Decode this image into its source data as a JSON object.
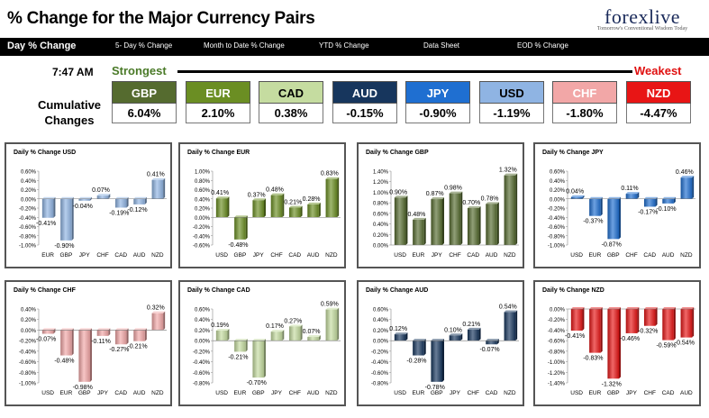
{
  "header": {
    "title": "% Change for the Major Currency Pairs",
    "logo_text": "forexlive",
    "logo_tagline": "Tomorrow's Conventional Wisdom Today"
  },
  "nav": {
    "items": [
      "Day % Change",
      "5- Day % Change",
      "Month to Date % Change",
      "YTD % Change",
      "Data Sheet",
      "EOD % Change"
    ]
  },
  "summary": {
    "time": "7:47 AM",
    "strongest_label": "Strongest",
    "weakest_label": "Weakest",
    "cumulative_label": "Cumulative Changes",
    "currencies": [
      {
        "code": "GBP",
        "value": "6.04%",
        "color": "#556b2f",
        "text_color": "#ffffff"
      },
      {
        "code": "EUR",
        "value": "2.10%",
        "color": "#6b8e23",
        "text_color": "#ffffff"
      },
      {
        "code": "CAD",
        "value": "0.38%",
        "color": "#c5dca0",
        "text_color": "#000000"
      },
      {
        "code": "AUD",
        "value": "-0.15%",
        "color": "#17365d",
        "text_color": "#ffffff"
      },
      {
        "code": "JPY",
        "value": "-0.90%",
        "color": "#1f6fd1",
        "text_color": "#ffffff"
      },
      {
        "code": "USD",
        "value": "-1.19%",
        "color": "#8fb4e3",
        "text_color": "#000000"
      },
      {
        "code": "CHF",
        "value": "-1.80%",
        "color": "#f2a7a7",
        "text_color": "#ffffff"
      },
      {
        "code": "NZD",
        "value": "-4.47%",
        "color": "#e81515",
        "text_color": "#ffffff"
      }
    ]
  },
  "chart_data": [
    {
      "type": "bar",
      "title": "Daily % Change USD",
      "base": "USD",
      "categories": [
        "EUR",
        "GBP",
        "JPY",
        "CHF",
        "CAD",
        "AUD",
        "NZD"
      ],
      "values": [
        -0.41,
        -0.9,
        -0.04,
        0.07,
        -0.19,
        -0.12,
        0.41
      ],
      "value_labels": [
        "-0.41%",
        "-0.90%",
        "-0.04%",
        "0.07%",
        "-0.19%",
        "-0.12%",
        "0.41%"
      ],
      "yticks": [
        "0.60%",
        "0.40%",
        "0.20%",
        "0.00%",
        "-0.20%",
        "-0.40%",
        "-0.60%",
        "-0.80%",
        "-1.00%"
      ],
      "ylim": [
        -1.0,
        0.6
      ],
      "color": "#8fb4e3"
    },
    {
      "type": "bar",
      "title": "Daily % Change EUR",
      "base": "EUR",
      "categories": [
        "USD",
        "GBP",
        "JPY",
        "CHF",
        "CAD",
        "AUD",
        "NZD"
      ],
      "values": [
        0.41,
        -0.48,
        0.37,
        0.48,
        0.21,
        0.28,
        0.83
      ],
      "value_labels": [
        "0.41%",
        "-0.48%",
        "0.37%",
        "0.48%",
        "0.21%",
        "0.28%",
        "0.83%"
      ],
      "yticks": [
        "1.00%",
        "0.80%",
        "0.60%",
        "0.40%",
        "0.20%",
        "0.00%",
        "-0.20%",
        "-0.40%",
        "-0.60%"
      ],
      "ylim": [
        -0.6,
        1.0
      ],
      "color": "#6b8e23"
    },
    {
      "type": "bar",
      "title": "Daily % Change GBP",
      "base": "GBP",
      "categories": [
        "USD",
        "EUR",
        "JPY",
        "CHF",
        "CAD",
        "AUD",
        "NZD"
      ],
      "values": [
        0.9,
        0.48,
        0.87,
        0.98,
        0.7,
        0.78,
        1.32
      ],
      "value_labels": [
        "0.90%",
        "0.48%",
        "0.87%",
        "0.98%",
        "0.70%",
        "0.78%",
        "1.32%"
      ],
      "yticks": [
        "1.40%",
        "1.20%",
        "1.00%",
        "0.80%",
        "0.60%",
        "0.40%",
        "0.20%",
        "0.00%"
      ],
      "ylim": [
        0.0,
        1.4
      ],
      "color": "#556b2f"
    },
    {
      "type": "bar",
      "title": "Daily % Change JPY",
      "base": "JPY",
      "categories": [
        "USD",
        "EUR",
        "GBP",
        "CHF",
        "CAD",
        "AUD",
        "NZD"
      ],
      "values": [
        0.04,
        -0.37,
        -0.87,
        0.11,
        -0.17,
        -0.1,
        0.46
      ],
      "value_labels": [
        "0.04%",
        "-0.37%",
        "-0.87%",
        "0.11%",
        "-0.17%",
        "-0.10%",
        "0.46%"
      ],
      "yticks": [
        "0.60%",
        "0.40%",
        "0.20%",
        "0.00%",
        "-0.20%",
        "-0.40%",
        "-0.60%",
        "-0.80%",
        "-1.00%"
      ],
      "ylim": [
        -1.0,
        0.6
      ],
      "color": "#1f6fd1"
    },
    {
      "type": "bar",
      "title": "Daily % Change CHF",
      "base": "CHF",
      "categories": [
        "USD",
        "EUR",
        "GBP",
        "JPY",
        "CAD",
        "AUD",
        "NZD"
      ],
      "values": [
        -0.07,
        -0.48,
        -0.98,
        -0.11,
        -0.27,
        -0.21,
        0.32
      ],
      "value_labels": [
        "-0.07%",
        "-0.48%",
        "-0.98%",
        "-0.11%",
        "-0.27%",
        "-0.21%",
        "0.32%"
      ],
      "yticks": [
        "0.40%",
        "0.20%",
        "0.00%",
        "-0.20%",
        "-0.40%",
        "-0.60%",
        "-0.80%",
        "-1.00%"
      ],
      "ylim": [
        -1.0,
        0.4
      ],
      "color": "#f2a7a7"
    },
    {
      "type": "bar",
      "title": "Daily % Change CAD",
      "base": "CAD",
      "categories": [
        "USD",
        "EUR",
        "GBP",
        "JPY",
        "CHF",
        "AUD",
        "NZD"
      ],
      "values": [
        0.19,
        -0.21,
        -0.7,
        0.17,
        0.27,
        0.07,
        0.59
      ],
      "value_labels": [
        "0.19%",
        "-0.21%",
        "-0.70%",
        "0.17%",
        "0.27%",
        "0.07%",
        "0.59%"
      ],
      "yticks": [
        "0.60%",
        "0.40%",
        "0.20%",
        "0.00%",
        "-0.20%",
        "-0.40%",
        "-0.60%",
        "-0.80%"
      ],
      "ylim": [
        -0.8,
        0.6
      ],
      "color": "#c5dca0"
    },
    {
      "type": "bar",
      "title": "Daily % Change AUD",
      "base": "AUD",
      "categories": [
        "USD",
        "EUR",
        "GBP",
        "JPY",
        "CHF",
        "CAD",
        "NZD"
      ],
      "values": [
        0.12,
        -0.28,
        -0.78,
        0.1,
        0.21,
        -0.07,
        0.54
      ],
      "value_labels": [
        "0.12%",
        "-0.28%",
        "-0.78%",
        "0.10%",
        "0.21%",
        "-0.07%",
        "0.54%"
      ],
      "yticks": [
        "0.60%",
        "0.40%",
        "0.20%",
        "0.00%",
        "-0.20%",
        "-0.40%",
        "-0.60%",
        "-0.80%"
      ],
      "ylim": [
        -0.8,
        0.6
      ],
      "color": "#17365d"
    },
    {
      "type": "bar",
      "title": "Daily % Change NZD",
      "base": "NZD",
      "categories": [
        "USD",
        "EUR",
        "GBP",
        "JPY",
        "CHF",
        "CAD",
        "AUD"
      ],
      "values": [
        -0.41,
        -0.83,
        -1.32,
        -0.46,
        -0.32,
        -0.59,
        -0.54
      ],
      "value_labels": [
        "-0.41%",
        "-0.83%",
        "-1.32%",
        "-0.46%",
        "-0.32%",
        "-0.59%",
        "-0.54%"
      ],
      "yticks": [
        "0.00%",
        "-0.20%",
        "-0.40%",
        "-0.60%",
        "-0.80%",
        "-1.00%",
        "-1.20%",
        "-1.40%"
      ],
      "ylim": [
        -1.4,
        0.0
      ],
      "color": "#e81515"
    }
  ]
}
